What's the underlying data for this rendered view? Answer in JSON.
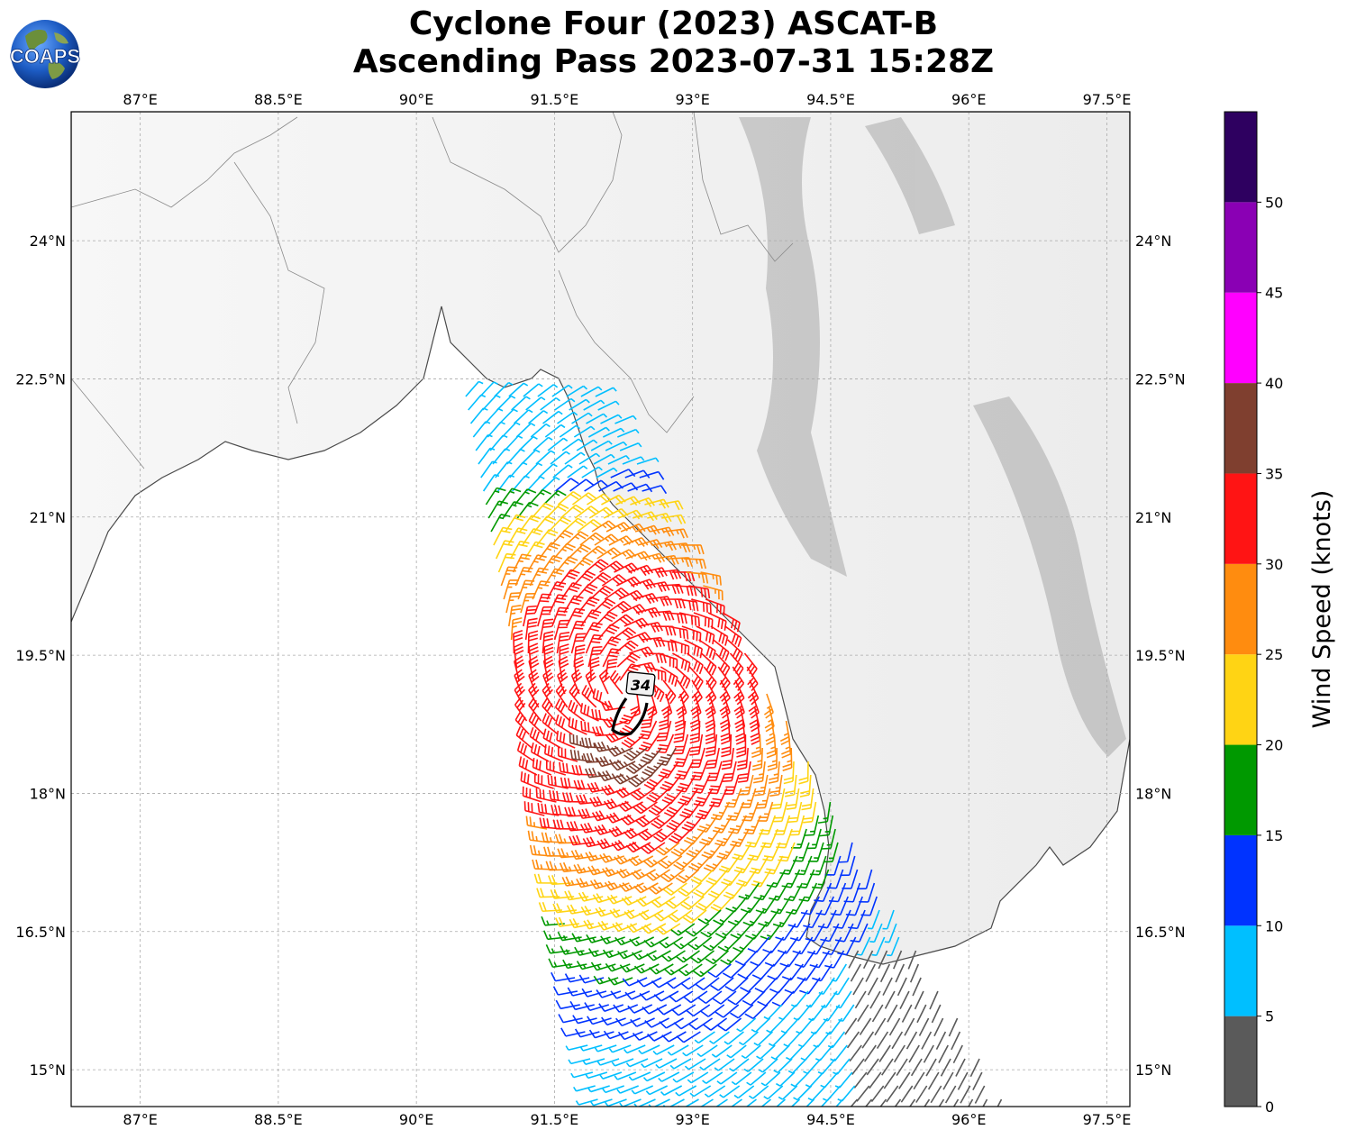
{
  "title": {
    "line1": "Cyclone Four (2023) ASCAT-B",
    "line2": "Ascending Pass 2023-07-31 15:28Z"
  },
  "logo": {
    "text": "COAPS",
    "icon": "globe-logo-icon"
  },
  "map": {
    "lon_range": [
      86.25,
      97.75
    ],
    "lat_range": [
      14.6,
      25.4
    ],
    "lon_ticks": [
      "87°E",
      "88.5°E",
      "90°E",
      "91.5°E",
      "93°E",
      "94.5°E",
      "96°E",
      "97.5°E"
    ],
    "lon_tick_values": [
      87,
      88.5,
      90,
      91.5,
      93,
      94.5,
      96,
      97.5
    ],
    "lat_ticks": [
      "15°N",
      "16.5°N",
      "18°N",
      "19.5°N",
      "21°N",
      "22.5°N",
      "24°N"
    ],
    "lat_tick_values": [
      15,
      16.5,
      18,
      19.5,
      21,
      22.5,
      24
    ],
    "gridlines": true,
    "wind_radius_label": "34",
    "storm_center": {
      "lon": 92.3,
      "lat": 19.1
    }
  },
  "colorbar": {
    "label": "Wind Speed (knots)",
    "ticks": [
      "0",
      "5",
      "10",
      "15",
      "20",
      "25",
      "30",
      "35",
      "40",
      "45",
      "50"
    ],
    "bins": [
      {
        "min": 0,
        "color": "#5a5a5a"
      },
      {
        "min": 5,
        "color": "#00bfff"
      },
      {
        "min": 10,
        "color": "#0033ff"
      },
      {
        "min": 15,
        "color": "#009900"
      },
      {
        "min": 20,
        "color": "#ffd414"
      },
      {
        "min": 25,
        "color": "#ff8c0f"
      },
      {
        "min": 30,
        "color": "#ff1414"
      },
      {
        "min": 35,
        "color": "#7f3f2f"
      },
      {
        "min": 40,
        "color": "#ff00ff"
      },
      {
        "min": 45,
        "color": "#8a00b4"
      },
      {
        "min": 50,
        "color": "#2e0060"
      }
    ],
    "max": 55
  }
}
